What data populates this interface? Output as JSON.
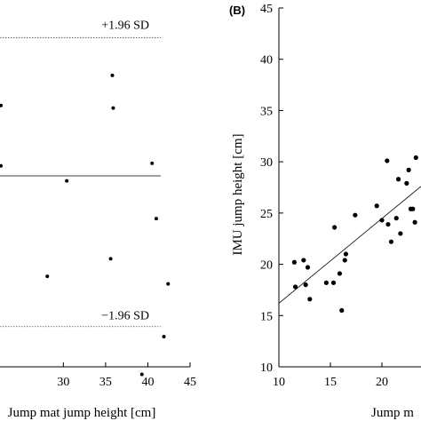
{
  "chart_data": [
    {
      "type": "scatter",
      "panel": "",
      "xlabel": "Jump mat jump height [cm]",
      "ylabel": "",
      "xlim": [
        22.5,
        45
      ],
      "ylim": [
        -3.7,
        3.6
      ],
      "xticks": [
        "30",
        "35",
        "40",
        "45"
      ],
      "xtick_values": [
        30,
        35,
        40,
        45
      ],
      "points": [
        {
          "x": 35.8,
          "y": 2.1
        },
        {
          "x": 35.9,
          "y": 1.45
        },
        {
          "x": 30.4,
          "y": 0.0
        },
        {
          "x": 40.5,
          "y": 0.35
        },
        {
          "x": 41.0,
          "y": -0.75
        },
        {
          "x": 35.6,
          "y": -1.55
        },
        {
          "x": 28.1,
          "y": -1.9
        },
        {
          "x": 42.4,
          "y": -2.05
        },
        {
          "x": 41.9,
          "y": -3.1
        },
        {
          "x": 39.3,
          "y": -3.85
        },
        {
          "x": 22.0,
          "y": 0.3
        },
        {
          "x": 22.0,
          "y": 1.5
        }
      ],
      "mean_line": 0.1,
      "upper_limit": {
        "value": 2.85,
        "label": "+1.96 SD"
      },
      "lower_limit": {
        "value": -2.9,
        "label": "−1.96 SD"
      },
      "grid": false
    },
    {
      "type": "scatter",
      "panel": "(B)",
      "xlabel": "Jump m",
      "ylabel": "IMU jump height [cm]",
      "xlim": [
        10,
        30
      ],
      "ylim": [
        10,
        45
      ],
      "xticks": [
        "10",
        "15",
        "20"
      ],
      "xtick_values": [
        10,
        15,
        20
      ],
      "yticks": [
        "10",
        "15",
        "20",
        "25",
        "30",
        "35",
        "40",
        "45"
      ],
      "ytick_values": [
        10,
        15,
        20,
        25,
        30,
        35,
        40,
        45
      ],
      "points": [
        {
          "x": 11.5,
          "y": 20.2
        },
        {
          "x": 11.6,
          "y": 17.8
        },
        {
          "x": 12.4,
          "y": 20.4
        },
        {
          "x": 12.6,
          "y": 18.0
        },
        {
          "x": 12.8,
          "y": 19.7
        },
        {
          "x": 13.0,
          "y": 16.6
        },
        {
          "x": 14.6,
          "y": 18.2
        },
        {
          "x": 15.3,
          "y": 18.2
        },
        {
          "x": 15.4,
          "y": 23.6
        },
        {
          "x": 15.9,
          "y": 19.1
        },
        {
          "x": 16.1,
          "y": 15.5
        },
        {
          "x": 16.4,
          "y": 20.4
        },
        {
          "x": 16.5,
          "y": 21.0
        },
        {
          "x": 17.4,
          "y": 24.8
        },
        {
          "x": 19.5,
          "y": 25.7
        },
        {
          "x": 20.0,
          "y": 24.3
        },
        {
          "x": 20.5,
          "y": 30.1
        },
        {
          "x": 20.6,
          "y": 23.9
        },
        {
          "x": 20.9,
          "y": 22.2
        },
        {
          "x": 21.4,
          "y": 24.5
        },
        {
          "x": 21.6,
          "y": 28.3
        },
        {
          "x": 21.8,
          "y": 23.0
        },
        {
          "x": 22.4,
          "y": 27.9
        },
        {
          "x": 22.6,
          "y": 29.2
        },
        {
          "x": 22.8,
          "y": 25.4
        },
        {
          "x": 23.0,
          "y": 25.4
        },
        {
          "x": 23.2,
          "y": 24.1
        },
        {
          "x": 23.3,
          "y": 30.4
        }
      ],
      "regression_line": {
        "x1": 10,
        "y1": 16.2,
        "x2": 24,
        "y2": 27.6
      },
      "grid": false
    }
  ]
}
